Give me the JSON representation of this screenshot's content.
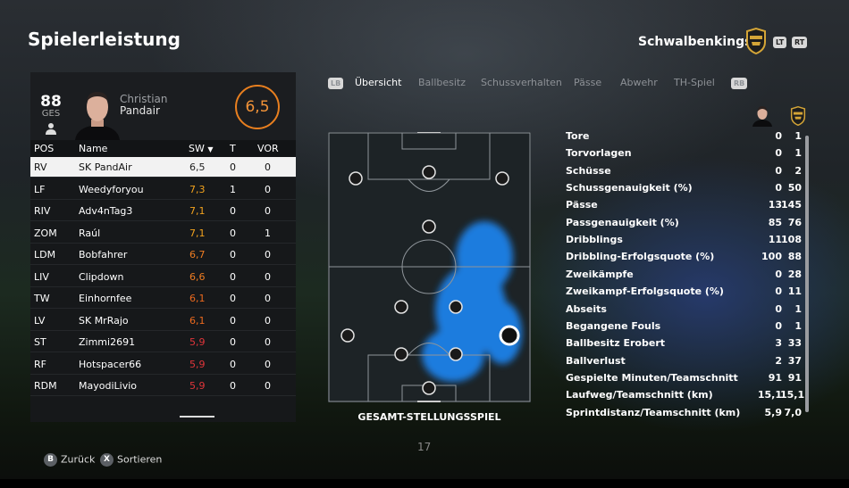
{
  "header": {
    "title": "Spielerleistung",
    "team_name": "Schwalbenkings",
    "lt": "LT",
    "rt": "RT"
  },
  "player": {
    "ges_value": "88",
    "ges_label": "GES",
    "first_name": "Christian",
    "last_name": "Pandair",
    "rating": "6,5"
  },
  "table": {
    "headers": {
      "pos": "POS",
      "name": "Name",
      "sw": "SW",
      "t": "T",
      "vor": "VOR"
    },
    "rows": [
      {
        "pos": "RV",
        "name": "SK PandAir",
        "sw": "6,5",
        "t": "0",
        "vor": "0",
        "sw_color": "#222222"
      },
      {
        "pos": "LF",
        "name": "Weedyforyou",
        "sw": "7,3",
        "t": "1",
        "vor": "0",
        "sw_color": "#f2a21d"
      },
      {
        "pos": "RIV",
        "name": "Adv4nTag3",
        "sw": "7,1",
        "t": "0",
        "vor": "0",
        "sw_color": "#f2a21d"
      },
      {
        "pos": "ZOM",
        "name": "Raúl",
        "sw": "7,1",
        "t": "0",
        "vor": "1",
        "sw_color": "#f2a21d"
      },
      {
        "pos": "LDM",
        "name": "Bobfahrer",
        "sw": "6,7",
        "t": "0",
        "vor": "0",
        "sw_color": "#ee7c22"
      },
      {
        "pos": "LIV",
        "name": "Clipdown",
        "sw": "6,6",
        "t": "0",
        "vor": "0",
        "sw_color": "#ee7c22"
      },
      {
        "pos": "TW",
        "name": "Einhornfee",
        "sw": "6,1",
        "t": "0",
        "vor": "0",
        "sw_color": "#ec6a1e"
      },
      {
        "pos": "LV",
        "name": "SK MrRajo",
        "sw": "6,1",
        "t": "0",
        "vor": "0",
        "sw_color": "#ec6a1e"
      },
      {
        "pos": "ST",
        "name": "Zimmi2691",
        "sw": "5,9",
        "t": "0",
        "vor": "0",
        "sw_color": "#e0353a"
      },
      {
        "pos": "RF",
        "name": "Hotspacer66",
        "sw": "5,9",
        "t": "0",
        "vor": "0",
        "sw_color": "#e0353a"
      },
      {
        "pos": "RDM",
        "name": "MayodiLivio",
        "sw": "5,9",
        "t": "0",
        "vor": "0",
        "sw_color": "#e0353a"
      }
    ]
  },
  "tabs": {
    "lb": "LB",
    "rb": "RB",
    "items": [
      "Übersicht",
      "Ballbesitz",
      "Schussverhalten",
      "Pässe",
      "Abwehr",
      "TH-Spiel"
    ],
    "active": 0
  },
  "pitch": {
    "caption": "GESAMT-STELLUNGSSPIEL",
    "page": "17"
  },
  "stats": [
    {
      "label": "Tore",
      "player": "0",
      "team": "1"
    },
    {
      "label": "Torvorlagen",
      "player": "0",
      "team": "1"
    },
    {
      "label": "Schüsse",
      "player": "0",
      "team": "2"
    },
    {
      "label": "Schussgenauigkeit (%)",
      "player": "0",
      "team": "50"
    },
    {
      "label": "Pässe",
      "player": "13",
      "team": "145"
    },
    {
      "label": "Passgenauigkeit (%)",
      "player": "85",
      "team": "76"
    },
    {
      "label": "Dribblings",
      "player": "11",
      "team": "108"
    },
    {
      "label": "Dribbling-Erfolgsquote (%)",
      "player": "100",
      "team": "88"
    },
    {
      "label": "Zweikämpfe",
      "player": "0",
      "team": "28"
    },
    {
      "label": "Zweikampf-Erfolgsquote (%)",
      "player": "0",
      "team": "11"
    },
    {
      "label": "Abseits",
      "player": "0",
      "team": "1"
    },
    {
      "label": "Begangene Fouls",
      "player": "0",
      "team": "1"
    },
    {
      "label": "Ballbesitz Erobert",
      "player": "3",
      "team": "33"
    },
    {
      "label": "Ballverlust",
      "player": "2",
      "team": "37"
    },
    {
      "label": "Gespielte Minuten/Teamschnitt",
      "player": "91",
      "team": "91"
    },
    {
      "label": "Laufweg/Teamschnitt (km)",
      "player": "15,1",
      "team": "15,1"
    },
    {
      "label": "Sprintdistanz/Teamschnitt (km)",
      "player": "5,9",
      "team": "7,0"
    }
  ],
  "footer": {
    "back_key": "B",
    "back_label": "Zurück",
    "sort_key": "X",
    "sort_label": "Sortieren"
  },
  "colors": {
    "accent_orange": "#e87f1f",
    "heatmap_blue": "#1e8cff"
  }
}
